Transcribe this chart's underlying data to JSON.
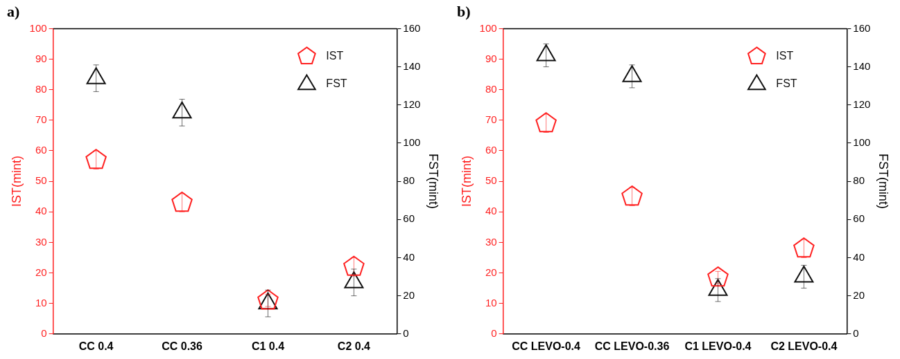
{
  "chart_data": [
    {
      "type": "scatter",
      "title": "a)",
      "categories": [
        "CC 0.4",
        "CC 0.36",
        "C1 0.4",
        "C2 0.4"
      ],
      "ylabel": "IST(mint)",
      "y2label": "FST(mint)",
      "ylim": [
        0,
        100
      ],
      "yticks": [
        0,
        10,
        20,
        30,
        40,
        50,
        60,
        70,
        80,
        90,
        100
      ],
      "y2lim": [
        0,
        160
      ],
      "y2ticks": [
        0,
        20,
        40,
        60,
        80,
        100,
        120,
        140,
        160
      ],
      "grid": false,
      "legend": "top right",
      "series": [
        {
          "name": "IST",
          "color": "#ff2020",
          "values": [
            57,
            43,
            11,
            22
          ],
          "errors": [
            3,
            3,
            2,
            3
          ]
        },
        {
          "name": "FST",
          "color": "#111111",
          "marker": "triangle",
          "axis": "y2",
          "values": [
            134,
            116,
            16,
            27
          ],
          "errors": [
            7,
            7,
            7,
            7
          ]
        }
      ]
    },
    {
      "type": "scatter",
      "title": "b)",
      "categories": [
        "CC LEVO-0.4",
        "CC LEVO-0.36",
        "C1 LEVO-0.4",
        "C2 LEVO-0.4"
      ],
      "ylabel": "IST(mint)",
      "y2label": "FST(mint)",
      "ylim": [
        0,
        100
      ],
      "yticks": [
        0,
        10,
        20,
        30,
        40,
        50,
        60,
        70,
        80,
        90,
        100
      ],
      "y2lim": [
        0,
        160
      ],
      "y2ticks": [
        0,
        20,
        40,
        60,
        80,
        100,
        120,
        140,
        160
      ],
      "grid": false,
      "legend": "top right",
      "series": [
        {
          "name": "IST",
          "color": "#ff2020",
          "values": [
            69,
            45,
            18.5,
            28
          ],
          "errors": [
            3,
            3,
            2,
            3
          ]
        },
        {
          "name": "FST",
          "color": "#111111",
          "marker": "triangle",
          "axis": "y2",
          "values": [
            146,
            135,
            23,
            30
          ],
          "errors": [
            6,
            6,
            6,
            6
          ]
        }
      ]
    }
  ]
}
